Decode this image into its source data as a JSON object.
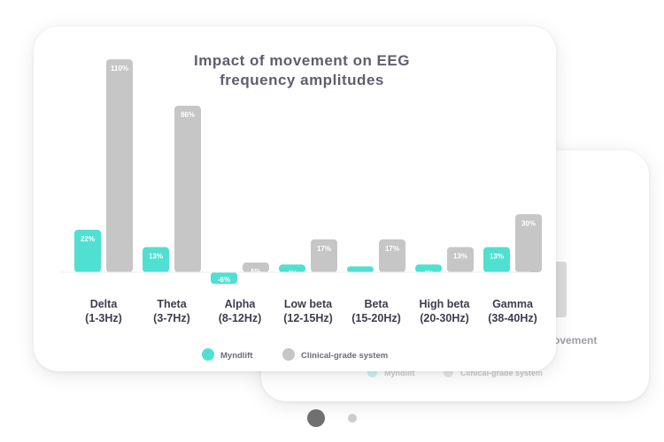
{
  "chart_data": {
    "type": "bar",
    "title_lines": [
      "Impact of movement on EEG",
      "frequency amplitudes"
    ],
    "categories": [
      [
        "Delta",
        "(1-3Hz)"
      ],
      [
        "Theta",
        "(3-7Hz)"
      ],
      [
        "Alpha",
        "(8-12Hz)"
      ],
      [
        "Low beta",
        "(12-15Hz)"
      ],
      [
        "Beta",
        "(15-20Hz)"
      ],
      [
        "High beta",
        "(20-30Hz)"
      ],
      [
        "Gamma",
        "(38-40Hz)"
      ]
    ],
    "series": [
      {
        "name": "Myndlift",
        "color": "#4fe0d2",
        "values": [
          22,
          13,
          -6,
          4,
          3,
          4,
          13
        ]
      },
      {
        "name": "Clinical-grade system",
        "color": "#c6c6c6",
        "values": [
          110,
          86,
          5,
          17,
          17,
          13,
          30
        ]
      }
    ],
    "unit": "%",
    "ylim": [
      -10,
      115
    ],
    "grid": false,
    "legend_position": "bottom"
  },
  "back_card": {
    "title_fragment": "ovement",
    "bar_label": "1%",
    "legend": [
      "Myndlift",
      "Clinical-grade system"
    ]
  },
  "colors": {
    "title": "#5e5f6e",
    "category": "#3d3d4d",
    "bar_label": "#ffffff",
    "legend_text": "#6b6b78"
  },
  "pager": {
    "pages": 2,
    "active": 1
  }
}
